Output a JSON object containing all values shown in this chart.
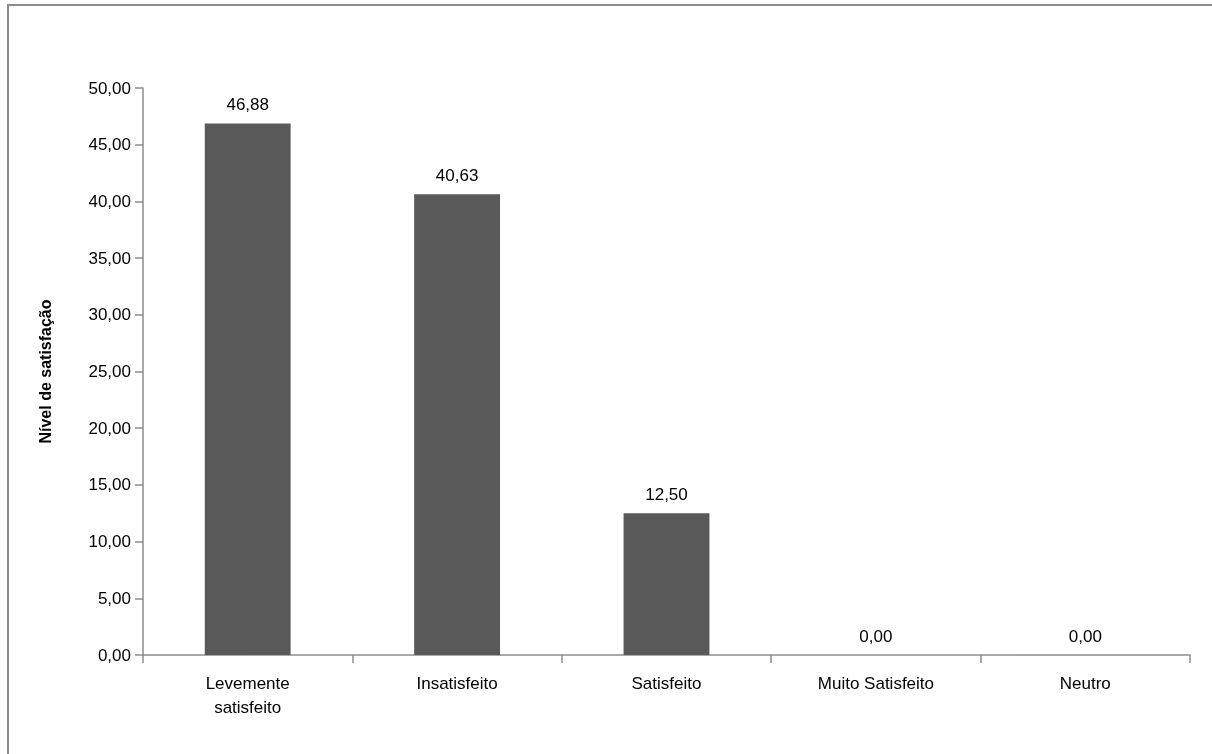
{
  "chart_data": {
    "type": "bar",
    "ylabel": "Nível de satisfação",
    "categories": [
      "Levemente\nsatisfeito",
      "Insatisfeito",
      "Satisfeito",
      "Muito Satisfeito",
      "Neutro"
    ],
    "values": [
      46.88,
      40.63,
      12.5,
      0,
      0
    ],
    "value_labels": [
      "46,88",
      "40,63",
      "12,50",
      "0,00",
      "0,00"
    ],
    "color": "#595959",
    "ylim": [
      0,
      50
    ],
    "yticks": [
      {
        "value": 0,
        "label": "0,00"
      },
      {
        "value": 5,
        "label": "5,00"
      },
      {
        "value": 10,
        "label": "10,00"
      },
      {
        "value": 15,
        "label": "15,00"
      },
      {
        "value": 20,
        "label": "20,00"
      },
      {
        "value": 25,
        "label": "25,00"
      },
      {
        "value": 30,
        "label": "30,00"
      },
      {
        "value": 35,
        "label": "35,00"
      },
      {
        "value": 40,
        "label": "40,00"
      },
      {
        "value": 45,
        "label": "45,00"
      },
      {
        "value": 50,
        "label": "50,00"
      }
    ],
    "grid": false
  }
}
